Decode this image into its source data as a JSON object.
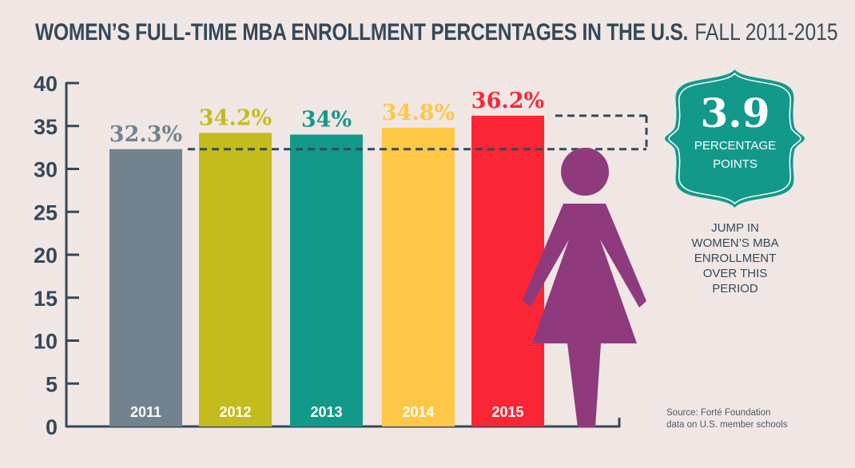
{
  "header": {
    "title": "WOMEN’S FULL-TIME MBA ENROLLMENT PERCENTAGES IN THE U.S.",
    "subtitle": "FALL 2011-2015"
  },
  "chart_data": {
    "type": "bar",
    "title": "WOMEN’S FULL-TIME MBA ENROLLMENT PERCENTAGES IN THE U.S.",
    "subtitle": "FALL 2011-2015",
    "xlabel": "",
    "ylabel": "",
    "categories": [
      "2011",
      "2012",
      "2013",
      "2014",
      "2015"
    ],
    "values": [
      32.3,
      34.2,
      34.0,
      34.8,
      36.2
    ],
    "value_labels": [
      "32.3%",
      "34.2%",
      "34%",
      "34.8%",
      "36.2%"
    ],
    "colors": [
      "#72828F",
      "#C4BB1C",
      "#13998A",
      "#FEC745",
      "#FB2635"
    ],
    "ylim": [
      0,
      40
    ],
    "yticks": [
      0,
      5,
      10,
      15,
      20,
      25,
      30,
      35,
      40
    ],
    "grid": false,
    "annotation": {
      "bracket_from": 32.3,
      "bracket_to": 36.2,
      "value": "3.9",
      "unit": "PERCENTAGE POINTS",
      "note": "JUMP IN WOMEN’S MBA ENROLLMENT OVER THIS PERIOD"
    }
  },
  "badge": {
    "number": "3.9",
    "unit_line1": "PERCENTAGE",
    "unit_line2": "POINTS",
    "color": "#13998A"
  },
  "note": {
    "lines": [
      "JUMP IN",
      "WOMEN’S MBA",
      "ENROLLMENT",
      "OVER THIS",
      "PERIOD"
    ]
  },
  "figure": {
    "icon": "woman-icon",
    "color": "#8E3A7C"
  },
  "source": {
    "line1": "Source: Forté Foundation",
    "line2": "data on U.S. member schools"
  },
  "colors": {
    "axis": "#34495A",
    "background": "#F0E7E4"
  }
}
